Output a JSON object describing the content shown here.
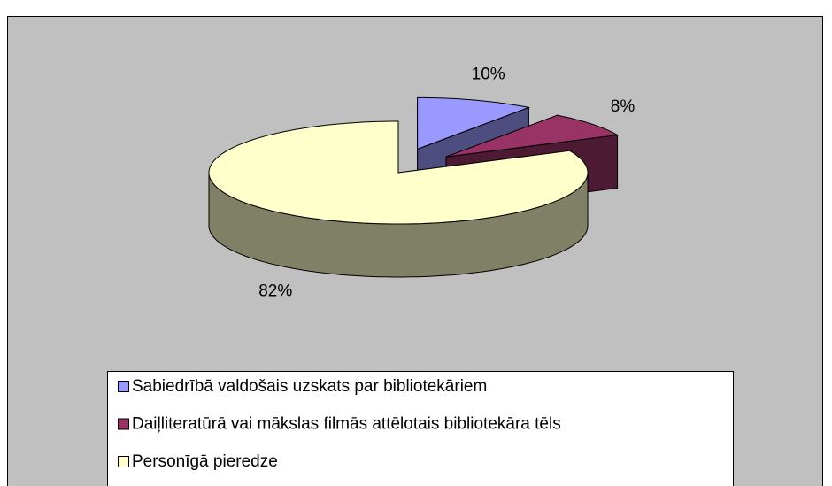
{
  "chart_data": {
    "type": "pie3d",
    "categories": [
      "Sabiedrībā valdošais uzskats par bibliotekāriem",
      "Daiļliteratūrā vai mākslas filmās attēlotais bibliotekāra tēls",
      "Personīgā pieredze"
    ],
    "values": [
      10,
      8,
      82
    ],
    "value_labels": [
      "10%",
      "8%",
      "82%"
    ],
    "colors": [
      "#9999ff",
      "#993366",
      "#ffffcc"
    ],
    "legend": "bottom"
  }
}
